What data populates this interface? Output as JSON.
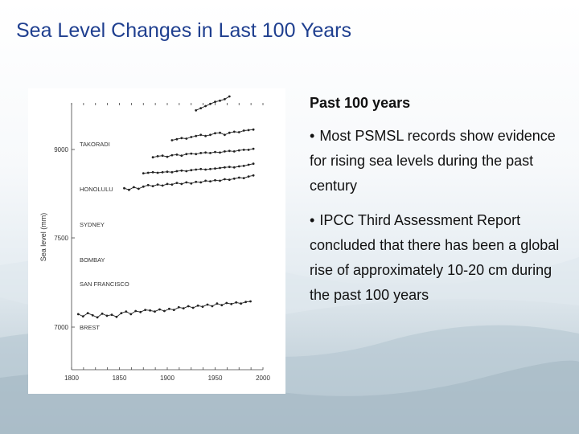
{
  "slide": {
    "title": "Sea Level Changes in Last 100 Years",
    "heading": "Past 100 years",
    "bullet_mark": "•",
    "bullets": [
      "Most PSMSL records show evidence for rising sea levels during the past century",
      "IPCC Third Assessment Report concluded that there has been a global rise of approximately 10-20 cm during the past 100 years"
    ],
    "colors": {
      "title": "#1f3f8f",
      "series": "#222222"
    }
  },
  "chart_data": {
    "type": "line",
    "title": "",
    "xlabel": "",
    "ylabel": "Sea level (mm)",
    "xlim": [
      1800,
      2000
    ],
    "ylim": [
      6500,
      9000
    ],
    "x_ticks": [
      "1800",
      "1850",
      "1900",
      "1950",
      "2000"
    ],
    "y_ticks": [
      "9000",
      "7500",
      "7000"
    ],
    "grid": false,
    "legend": "inline labels left",
    "series": [
      {
        "name": "TAKORADI",
        "x": [
          1930,
          1935,
          1940,
          1945,
          1950,
          1955,
          1960,
          1965
        ],
        "values": [
          8930,
          8950,
          8970,
          8990,
          9010,
          9020,
          9035,
          9060
        ]
      },
      {
        "name": "HONOLULU",
        "x": [
          1905,
          1910,
          1915,
          1920,
          1925,
          1930,
          1935,
          1940,
          1945,
          1950,
          1955,
          1960,
          1965,
          1970,
          1975,
          1980,
          1985,
          1990
        ],
        "values": [
          8650,
          8660,
          8670,
          8665,
          8680,
          8690,
          8700,
          8690,
          8700,
          8715,
          8720,
          8700,
          8720,
          8730,
          8725,
          8740,
          8745,
          8750
        ]
      },
      {
        "name": "SYDNEY",
        "x": [
          1885,
          1890,
          1895,
          1900,
          1905,
          1910,
          1915,
          1920,
          1925,
          1930,
          1935,
          1940,
          1945,
          1950,
          1955,
          1960,
          1965,
          1970,
          1975,
          1980,
          1985,
          1990
        ],
        "values": [
          8490,
          8500,
          8505,
          8495,
          8510,
          8515,
          8505,
          8520,
          8525,
          8520,
          8530,
          8535,
          8530,
          8540,
          8535,
          8545,
          8550,
          8545,
          8555,
          8560,
          8560,
          8570
        ]
      },
      {
        "name": "BOMBAY",
        "x": [
          1875,
          1880,
          1885,
          1890,
          1895,
          1900,
          1905,
          1910,
          1915,
          1920,
          1925,
          1930,
          1935,
          1940,
          1945,
          1950,
          1955,
          1960,
          1965,
          1970,
          1975,
          1980,
          1985,
          1990
        ],
        "values": [
          8340,
          8345,
          8350,
          8345,
          8350,
          8355,
          8350,
          8360,
          8365,
          8360,
          8370,
          8375,
          8380,
          8375,
          8380,
          8385,
          8390,
          8395,
          8400,
          8395,
          8405,
          8410,
          8420,
          8430
        ]
      },
      {
        "name": "SAN FRANCISCO",
        "x": [
          1855,
          1860,
          1865,
          1870,
          1875,
          1880,
          1885,
          1890,
          1895,
          1900,
          1905,
          1910,
          1915,
          1920,
          1925,
          1930,
          1935,
          1940,
          1945,
          1950,
          1955,
          1960,
          1965,
          1970,
          1975,
          1980,
          1985,
          1990
        ],
        "values": [
          8200,
          8185,
          8210,
          8195,
          8215,
          8230,
          8220,
          8235,
          8225,
          8240,
          8235,
          8250,
          8240,
          8255,
          8245,
          8260,
          8255,
          8270,
          8265,
          8275,
          8270,
          8285,
          8280,
          8290,
          8300,
          8295,
          8310,
          8320
        ]
      },
      {
        "name": "BREST",
        "x": [
          1807,
          1812,
          1817,
          1822,
          1827,
          1832,
          1837,
          1842,
          1847,
          1852,
          1857,
          1862,
          1867,
          1872,
          1877,
          1882,
          1887,
          1892,
          1897,
          1902,
          1907,
          1912,
          1917,
          1922,
          1927,
          1932,
          1937,
          1942,
          1947,
          1952,
          1957,
          1962,
          1967,
          1972,
          1977,
          1982,
          1987
        ],
        "values": [
          7020,
          7000,
          7030,
          7010,
          6990,
          7025,
          7005,
          7015,
          6995,
          7030,
          7045,
          7020,
          7050,
          7040,
          7060,
          7055,
          7045,
          7065,
          7050,
          7070,
          7060,
          7085,
          7075,
          7095,
          7080,
          7100,
          7090,
          7110,
          7095,
          7120,
          7105,
          7125,
          7115,
          7130,
          7120,
          7135,
          7140
        ]
      }
    ]
  }
}
